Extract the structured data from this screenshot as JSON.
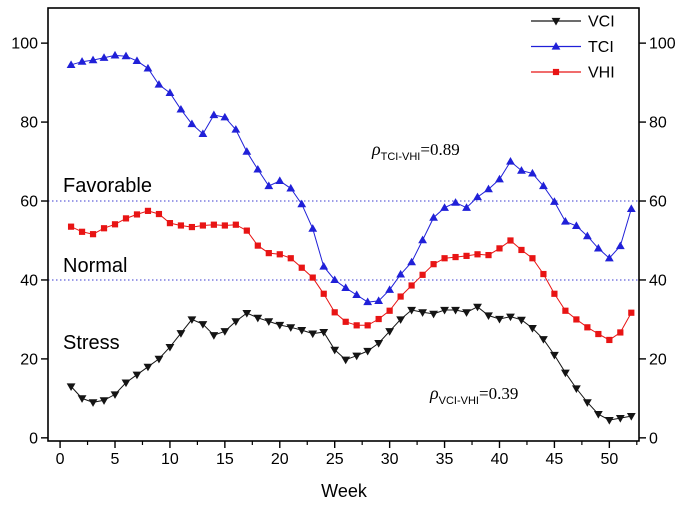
{
  "chart_data": {
    "type": "line",
    "title": "",
    "xlabel": "Week",
    "ylabel": "",
    "xlim": [
      -1.1,
      52.7
    ],
    "ylim": [
      -0.8,
      108.9
    ],
    "x_ticks": [
      0,
      5,
      10,
      15,
      20,
      25,
      30,
      35,
      40,
      45,
      50
    ],
    "x_minor_ticks": [
      2.5,
      7.5,
      12.5,
      17.5,
      22.5,
      27.5,
      32.5,
      37.5,
      42.5,
      47.5,
      52.5
    ],
    "y_ticks": [
      0,
      20,
      40,
      60,
      80,
      100
    ],
    "grid": false,
    "legend_position": "top-right-inside",
    "zone_labels": [
      "Favorable",
      "Normal",
      "Stress"
    ],
    "reference_lines": [
      {
        "y": 60,
        "style": "dotted",
        "color": "#3a3ad0"
      },
      {
        "y": 40,
        "style": "dotted",
        "color": "#3a3ad0"
      }
    ],
    "annotations": [
      {
        "symbol": "ρ",
        "subscript": "TCI-VHI",
        "equals_value": "=0.89"
      },
      {
        "symbol": "ρ",
        "subscript": "VCI-VHI",
        "equals_value": "=0.39"
      }
    ],
    "x": [
      1,
      2,
      3,
      4,
      5,
      6,
      7,
      8,
      9,
      10,
      11,
      12,
      13,
      14,
      15,
      16,
      17,
      18,
      19,
      20,
      21,
      22,
      23,
      24,
      25,
      26,
      27,
      28,
      29,
      30,
      31,
      32,
      33,
      34,
      35,
      36,
      37,
      38,
      39,
      40,
      41,
      42,
      43,
      44,
      45,
      46,
      47,
      48,
      49,
      50,
      51,
      52
    ],
    "series": [
      {
        "name": "VCI",
        "color": "#141414",
        "marker": "triangle-down",
        "values": [
          13,
          10,
          9,
          9.5,
          11,
          14,
          16,
          18,
          20,
          23,
          26.5,
          30,
          28.8,
          26,
          27,
          29.5,
          31.6,
          30.4,
          29.5,
          28.6,
          28,
          27.3,
          26.4,
          26.8,
          22.3,
          19.8,
          20.8,
          22,
          24,
          27,
          30,
          32.4,
          31.8,
          31.4,
          32.4,
          32.4,
          31.8,
          33.2,
          31,
          30.1,
          30.7,
          29.9,
          27.8,
          25,
          21,
          16.5,
          12.5,
          9,
          6,
          4.5,
          5,
          5.5
        ]
      },
      {
        "name": "TCI",
        "color": "#2020d8",
        "marker": "triangle-up",
        "values": [
          94.5,
          95.3,
          95.7,
          96.3,
          96.9,
          96.7,
          95.5,
          93.6,
          89.5,
          87.4,
          83.2,
          79.5,
          77,
          81.8,
          81.2,
          78.1,
          72.5,
          68,
          63.8,
          65.1,
          63.2,
          59.2,
          53,
          43.4,
          40,
          38,
          36.2,
          34.4,
          34.7,
          37.5,
          41.4,
          44.5,
          50.1,
          55.8,
          58.3,
          59.6,
          58.3,
          61,
          63,
          65.5,
          70,
          67.7,
          67,
          63.8,
          59.8,
          54.8,
          53.7,
          51.1,
          48,
          45.5,
          48.6,
          58
        ]
      },
      {
        "name": "VHI",
        "color": "#e81414",
        "marker": "square",
        "values": [
          53.5,
          52.2,
          51.6,
          53.1,
          54.1,
          55.6,
          56.6,
          57.5,
          56.7,
          54.4,
          53.8,
          53.4,
          53.8,
          54,
          53.8,
          54,
          52.5,
          48.7,
          46.8,
          46.5,
          45.5,
          43.1,
          40.6,
          36.5,
          31.8,
          29.4,
          28.5,
          28.5,
          30.1,
          32.2,
          35.8,
          38.6,
          41.3,
          44,
          45.5,
          45.8,
          46.1,
          46.5,
          46.3,
          48,
          50,
          47.6,
          45.5,
          41.5,
          36.5,
          32.2,
          30,
          28,
          26.3,
          24.8,
          26.7,
          31.7
        ]
      }
    ]
  }
}
